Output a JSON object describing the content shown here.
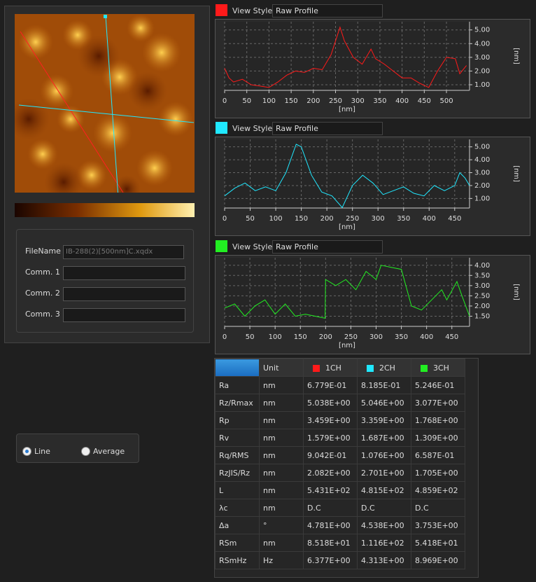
{
  "file_panel": {
    "filename_label": "FileName",
    "filename": "IB-288(2)[500nm]C.xqdx",
    "comment_labels": [
      "Comm. 1",
      "Comm. 2",
      "Comm. 3"
    ]
  },
  "mode": {
    "options": [
      "Line",
      "Average"
    ],
    "selected_index": 0
  },
  "view_style_label": "View Style",
  "chart_data": [
    {
      "type": "line",
      "view_style": "Raw Profile",
      "color": "#ff1a1a",
      "xlabel": "[nm]",
      "ylabel": "[nm]",
      "grid": true,
      "x": [
        0,
        10,
        20,
        40,
        60,
        80,
        100,
        120,
        140,
        160,
        180,
        200,
        220,
        240,
        260,
        270,
        290,
        310,
        330,
        340,
        360,
        380,
        400,
        420,
        440,
        460,
        480,
        500,
        520,
        530,
        545
      ],
      "values": [
        2.2,
        1.5,
        1.2,
        1.4,
        1.0,
        0.9,
        0.8,
        1.2,
        1.7,
        2.0,
        1.9,
        2.2,
        2.1,
        3.2,
        5.2,
        4.2,
        3.0,
        2.5,
        3.6,
        2.9,
        2.5,
        2.0,
        1.5,
        1.5,
        1.1,
        0.8,
        2.0,
        3.0,
        2.9,
        1.8,
        2.4
      ],
      "xlim": [
        0,
        552
      ],
      "ylim": [
        0.59,
        5.6
      ],
      "xticks": [
        0,
        50,
        100,
        150,
        200,
        250,
        300,
        350,
        400,
        450,
        500
      ],
      "yticks": [
        {
          "value": 1,
          "label": "1.00"
        },
        {
          "value": 2,
          "label": "2.00"
        },
        {
          "value": 3,
          "label": "3.00"
        },
        {
          "value": 4,
          "label": "4.00"
        },
        {
          "value": 5,
          "label": "5.00"
        }
      ]
    },
    {
      "type": "line",
      "view_style": "Raw Profile",
      "color": "#20e8ff",
      "xlabel": "[nm]",
      "ylabel": "[nm]",
      "grid": true,
      "x": [
        0,
        20,
        40,
        60,
        80,
        100,
        120,
        140,
        150,
        170,
        190,
        210,
        230,
        250,
        270,
        290,
        310,
        330,
        350,
        370,
        390,
        410,
        430,
        450,
        460,
        470,
        479
      ],
      "values": [
        1.2,
        1.8,
        2.2,
        1.6,
        1.9,
        1.6,
        3.0,
        5.2,
        5.0,
        2.8,
        1.5,
        1.2,
        0.3,
        2.0,
        2.8,
        2.2,
        1.3,
        1.6,
        1.9,
        1.4,
        1.2,
        2.0,
        1.6,
        2.0,
        3.0,
        2.6,
        2.0
      ],
      "xlim": [
        0,
        479
      ],
      "ylim": [
        0.26,
        5.58
      ],
      "xticks": [
        0,
        50,
        100,
        150,
        200,
        250,
        300,
        350,
        400,
        450
      ],
      "yticks": [
        {
          "value": 1,
          "label": "1.00"
        },
        {
          "value": 2,
          "label": "2.00"
        },
        {
          "value": 3,
          "label": "3.00"
        },
        {
          "value": 4,
          "label": "4.00"
        },
        {
          "value": 5,
          "label": "5.00"
        }
      ]
    },
    {
      "type": "line",
      "view_style": "Raw Profile",
      "color": "#22ee22",
      "xlabel": "[nm]",
      "ylabel": "[nm]",
      "grid": true,
      "x": [
        0,
        20,
        40,
        60,
        80,
        100,
        120,
        140,
        160,
        199,
        200,
        220,
        240,
        260,
        280,
        300,
        310,
        330,
        350,
        370,
        390,
        410,
        430,
        440,
        460,
        470,
        485
      ],
      "values": [
        1.9,
        2.1,
        1.5,
        2.0,
        2.3,
        1.6,
        2.1,
        1.5,
        1.6,
        1.4,
        3.3,
        3.0,
        3.3,
        2.8,
        3.7,
        3.3,
        4.0,
        3.9,
        3.8,
        2.0,
        1.8,
        2.3,
        2.8,
        2.3,
        3.2,
        2.5,
        1.5
      ],
      "xlim": [
        0,
        485
      ],
      "ylim": [
        1.0,
        4.37
      ],
      "xticks": [
        0,
        50,
        100,
        150,
        200,
        250,
        300,
        350,
        400,
        450
      ],
      "yticks": [
        {
          "value": 1.5,
          "label": "1.50"
        },
        {
          "value": 2,
          "label": "2.00"
        },
        {
          "value": 2.5,
          "label": "2.50"
        },
        {
          "value": 3,
          "label": "3.00"
        },
        {
          "value": 3.5,
          "label": "3.50"
        },
        {
          "value": 4,
          "label": "4.00"
        }
      ]
    }
  ],
  "table": {
    "header": [
      "Unit",
      "1CH",
      "2CH",
      "3CH"
    ],
    "rows": [
      [
        "Ra",
        "nm",
        "6.779E-01",
        "8.185E-01",
        "5.246E-01"
      ],
      [
        "Rz/Rmax",
        "nm",
        "5.038E+00",
        "5.046E+00",
        "3.077E+00"
      ],
      [
        "Rp",
        "nm",
        "3.459E+00",
        "3.359E+00",
        "1.768E+00"
      ],
      [
        "Rv",
        "nm",
        "1.579E+00",
        "1.687E+00",
        "1.309E+00"
      ],
      [
        "Rq/RMS",
        "nm",
        "9.042E-01",
        "1.076E+00",
        "6.587E-01"
      ],
      [
        "RzJIS/Rz",
        "nm",
        "2.082E+00",
        "2.701E+00",
        "1.705E+00"
      ],
      [
        "L",
        "nm",
        "5.431E+02",
        "4.815E+02",
        "4.859E+02"
      ],
      [
        "λc",
        "nm",
        "D.C",
        "D.C",
        "D.C"
      ],
      [
        "Δa",
        "°",
        "4.781E+00",
        "4.538E+00",
        "3.753E+00"
      ],
      [
        "RSm",
        "nm",
        "8.518E+01",
        "1.116E+02",
        "5.418E+01"
      ],
      [
        "RSmHz",
        "Hz",
        "6.377E+00",
        "4.313E+00",
        "8.969E+00"
      ]
    ]
  }
}
